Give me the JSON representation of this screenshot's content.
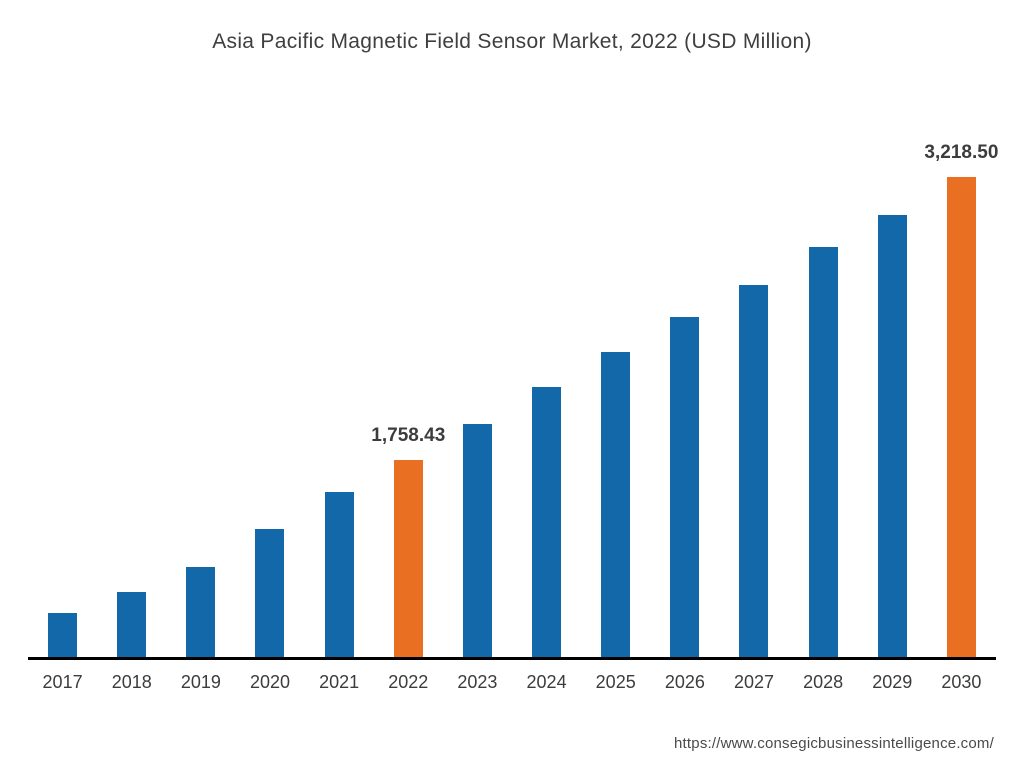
{
  "title": "Asia Pacific Magnetic Field Sensor Market, 2022 (USD Million)",
  "footer": {
    "url": "https://www.consegicbusinessintelligence.com/"
  },
  "colors": {
    "bar": "#1268a9",
    "highlight": "#e97023",
    "axis": "#000000"
  },
  "chart_data": {
    "type": "bar",
    "title": "Asia Pacific Magnetic Field Sensor Market, 2022 (USD Million)",
    "categories": [
      "2017",
      "2018",
      "2019",
      "2020",
      "2021",
      "2022",
      "2023",
      "2024",
      "2025",
      "2026",
      "2027",
      "2028",
      "2029",
      "2030"
    ],
    "values": [
      965,
      1075,
      1205,
      1400,
      1590,
      1758.43,
      1945,
      2135,
      2315,
      2495,
      2660,
      2855,
      3020,
      3218.5
    ],
    "highlighted_categories": [
      "2022",
      "2030"
    ],
    "value_labels": {
      "2022": "1,758.43",
      "2030": "3,218.50"
    },
    "xlabel": "",
    "ylabel": "",
    "ylim": [
      740,
      3350
    ],
    "grid": false,
    "legend": false
  }
}
